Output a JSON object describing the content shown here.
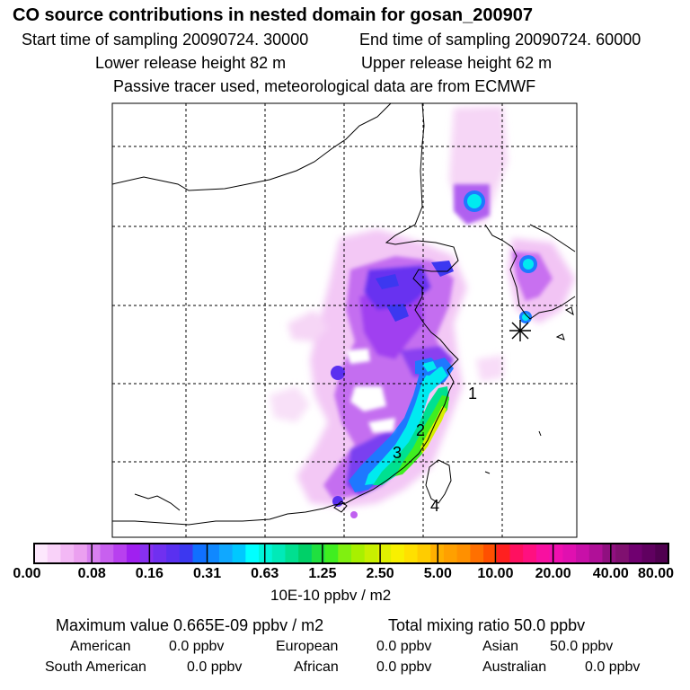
{
  "header": {
    "title": "CO  source contributions in nested domain for gosan_200907",
    "start_label": "Start time of sampling 20090724. 30000",
    "end_label": "End time of sampling 20090724. 60000",
    "lower_label": "Lower release height   82 m",
    "upper_label": "Upper release height   62 m",
    "tracer_line": "Passive tracer used, meteorological data are from ECMWF"
  },
  "map": {
    "markers": [
      {
        "label": "1",
        "x": 526,
        "y": 437
      },
      {
        "label": "2",
        "x": 468,
        "y": 478
      },
      {
        "label": "3",
        "x": 442,
        "y": 503
      },
      {
        "label": "4",
        "x": 484,
        "y": 562
      }
    ],
    "receptor_marker": "asterisk-icon"
  },
  "colorbar": {
    "ticks": [
      "0.00",
      "0.08",
      "0.16",
      "0.31",
      "0.63",
      "1.25",
      "2.50",
      "5.00",
      "10.00",
      "20.00",
      "40.00",
      "80.00"
    ],
    "colors": [
      "#fde8fd",
      "#f9d2f9",
      "#f3b8f5",
      "#eba0f0",
      "#d880f0",
      "#c860ef",
      "#b840ef",
      "#a020f0",
      "#8830f0",
      "#7030f0",
      "#5a30f0",
      "#3c38f0",
      "#1070ff",
      "#1088ff",
      "#10a8ff",
      "#00c8ff",
      "#00ffff",
      "#00f4d8",
      "#00eab8",
      "#00e090",
      "#00d068",
      "#20e040",
      "#40ee20",
      "#80f010",
      "#a8f000",
      "#c8f000",
      "#e0f000",
      "#f8f000",
      "#ffe000",
      "#ffcc00",
      "#ffb000",
      "#ffa000",
      "#ff9000",
      "#ff7000",
      "#ff5000",
      "#ff2020",
      "#ff1060",
      "#ff1080",
      "#f810a0",
      "#f010b0",
      "#e010b0",
      "#c810a8",
      "#b01098",
      "#901080",
      "#801070",
      "#700070",
      "#600060",
      "#500050"
    ],
    "units": "10E-10 ppbv / m2"
  },
  "footer": {
    "max_line": "Maximum value  0.665E-09 ppbv / m2",
    "total_line": "Total mixing ratio       50.0 ppbv",
    "sources": [
      {
        "name": "American",
        "value": "0.0 ppbv"
      },
      {
        "name": "European",
        "value": "0.0 ppbv"
      },
      {
        "name": "Asian",
        "value": "50.0 ppbv"
      },
      {
        "name": "South American",
        "value": "0.0 ppbv"
      },
      {
        "name": "African",
        "value": "0.0 ppbv"
      },
      {
        "name": "Australian",
        "value": "0.0 ppbv"
      }
    ]
  }
}
